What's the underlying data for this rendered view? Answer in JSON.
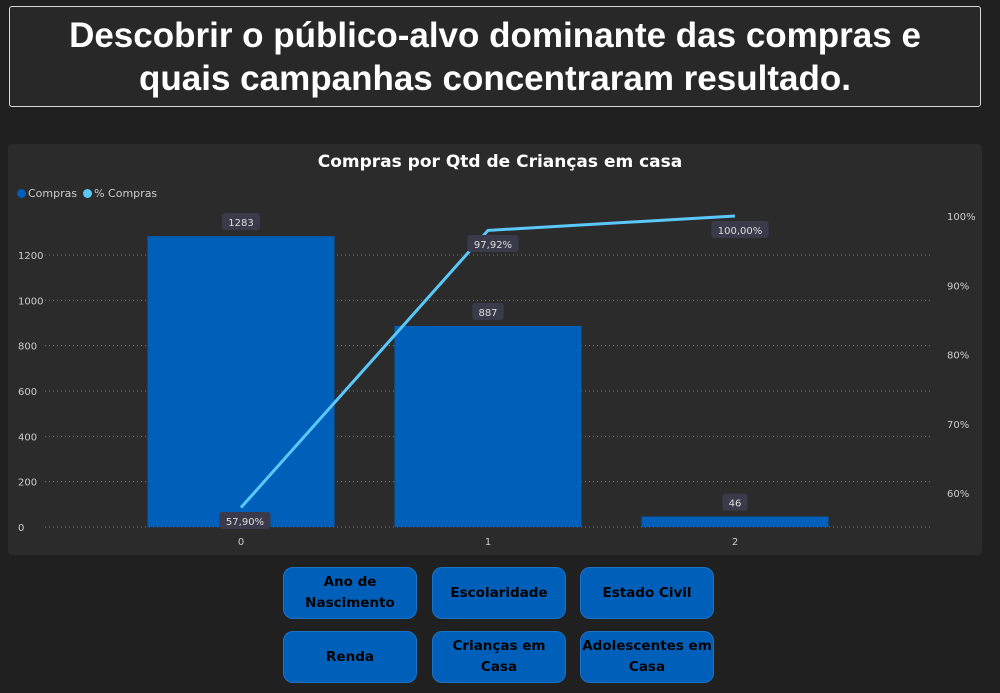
{
  "header": {
    "title": "Descobrir o público-alvo dominante das compras e quais campanhas concentraram resultado."
  },
  "chart_data": {
    "type": "bar+line",
    "title": "Compras por Qtd de Crianças em casa",
    "categories": [
      "0",
      "1",
      "2"
    ],
    "series": [
      {
        "name": "Compras",
        "type": "bar",
        "axis": "left",
        "values": [
          1283,
          887,
          46
        ],
        "labels": [
          "1283",
          "887",
          "46"
        ],
        "color": "#005fb8"
      },
      {
        "name": "% Compras",
        "type": "line",
        "axis": "right",
        "values": [
          57.9,
          97.92,
          100.0
        ],
        "labels": [
          "57,90%",
          "97,92%",
          "100,00%"
        ],
        "color": "#5ac8fa"
      }
    ],
    "left_axis": {
      "ticks": [
        0,
        200,
        400,
        600,
        800,
        1000,
        1200
      ],
      "range": [
        0,
        1200
      ]
    },
    "right_axis": {
      "ticks": [
        "60%",
        "70%",
        "80%",
        "90%",
        "100%"
      ],
      "tick_values": [
        60,
        70,
        80,
        90,
        100
      ]
    },
    "grid": true,
    "legend": "top-left"
  },
  "buttons": [
    "Ano de Nascimento",
    "Escolaridade",
    "Estado Civil",
    "Renda",
    "Crianças em Casa",
    "Adolescentes em Casa"
  ]
}
